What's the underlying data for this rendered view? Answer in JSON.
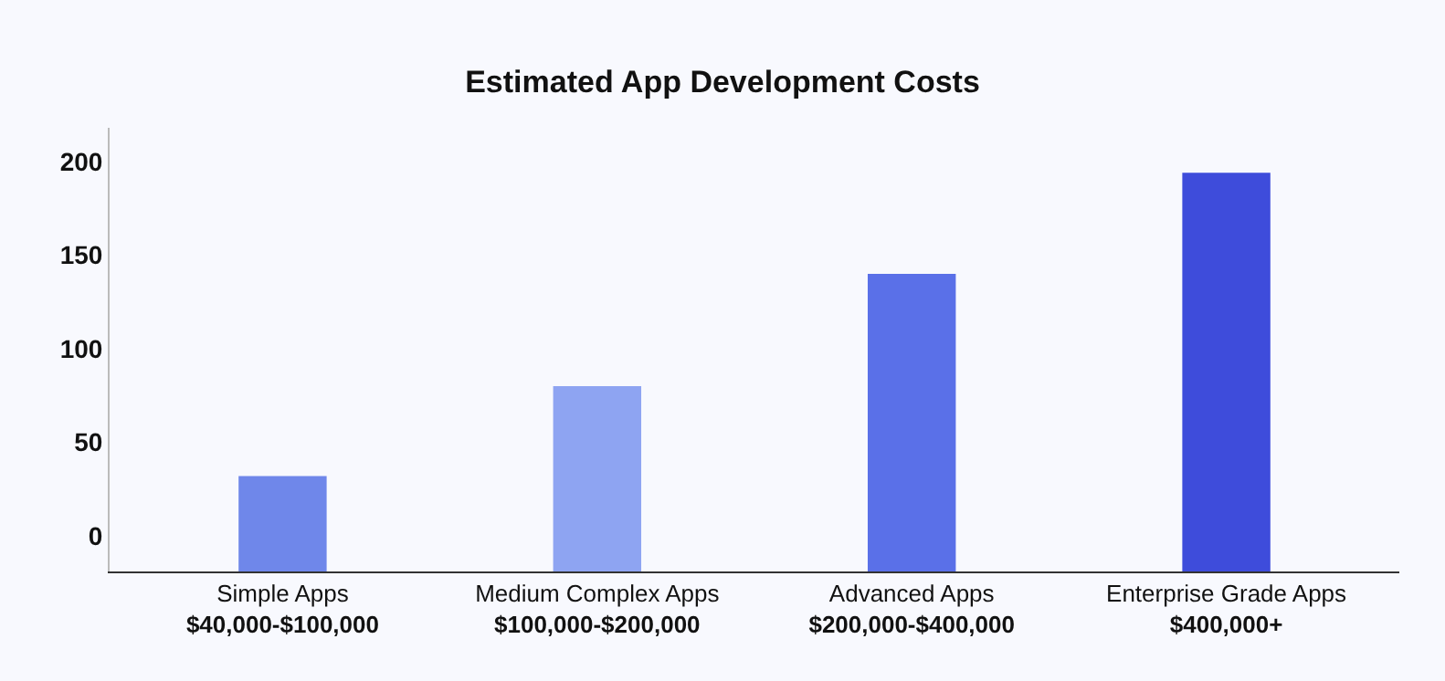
{
  "chart_data": {
    "type": "bar",
    "title": "Estimated App Development Costs",
    "categories": [
      "Simple Apps\n$40,000-$100,000",
      "Medium Complex Apps\n$100,000-$200,000",
      "Advanced Apps\n$200,000-$400,000",
      "Enterprise Grade Apps\n$400,000+"
    ],
    "values": [
      51,
      99,
      159,
      213
    ],
    "base": [
      -19,
      -19,
      -19,
      -19
    ],
    "colors": [
      "#6f87ea",
      "#8ea4f2",
      "#5a70e8",
      "#3e4cdb"
    ],
    "ylim": [
      -19,
      218
    ],
    "yticks": [
      0,
      50,
      100,
      150,
      200
    ],
    "grid": false
  }
}
